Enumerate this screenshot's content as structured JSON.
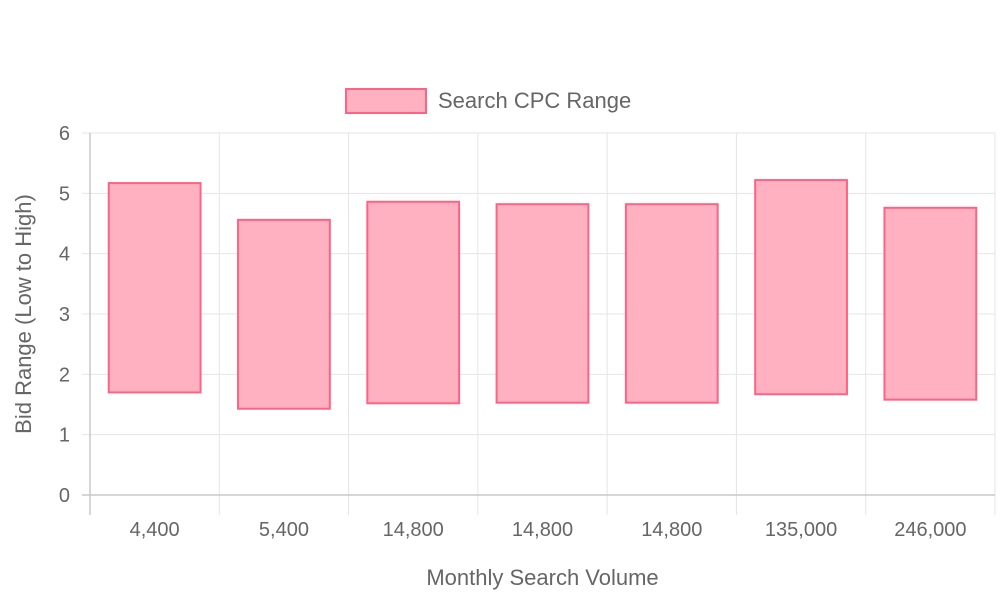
{
  "chart_data": {
    "type": "bar",
    "subtype": "floating-range",
    "xlabel": "Monthly Search Volume",
    "ylabel": "Bid Range (Low to High)",
    "categories": [
      "4,400",
      "5,400",
      "14,800",
      "14,800",
      "14,800",
      "135,000",
      "246,000"
    ],
    "series": [
      {
        "name": "Search CPC Range",
        "ranges": [
          [
            1.7,
            5.17
          ],
          [
            1.43,
            4.56
          ],
          [
            1.52,
            4.86
          ],
          [
            1.53,
            4.82
          ],
          [
            1.53,
            4.82
          ],
          [
            1.67,
            5.22
          ],
          [
            1.58,
            4.76
          ]
        ],
        "fill": "#ffb1c1",
        "stroke": "#ff6384"
      }
    ],
    "ylim": [
      0,
      6
    ],
    "yticks": [
      "0",
      "1",
      "2",
      "3",
      "4",
      "5",
      "6"
    ],
    "grid": true,
    "legend": "top-center"
  }
}
